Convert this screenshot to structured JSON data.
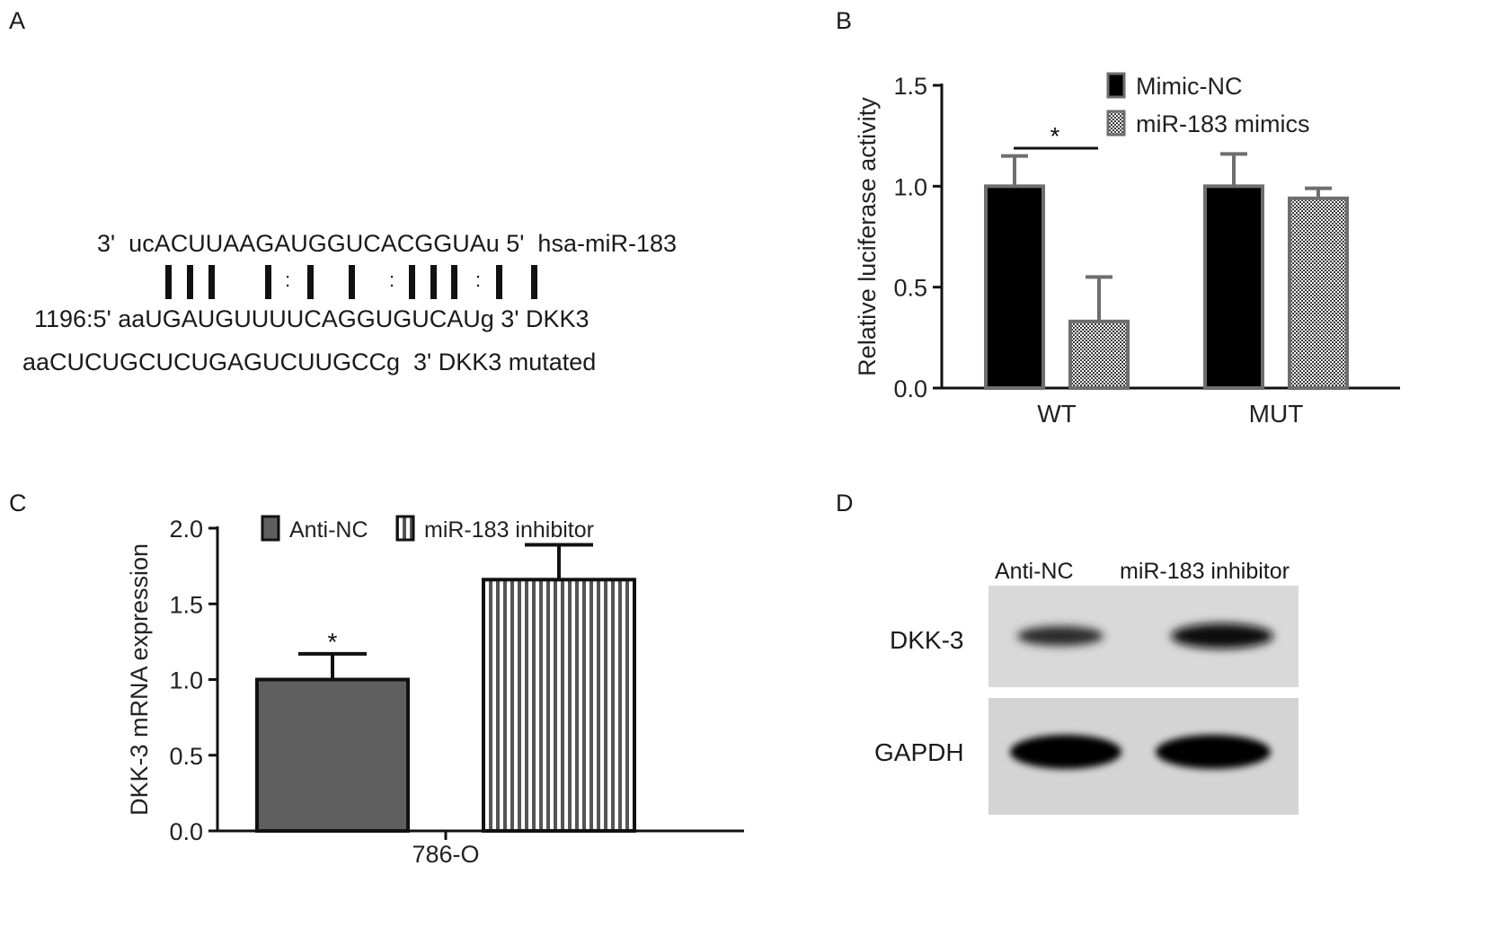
{
  "panels": {
    "a": {
      "letter": "A",
      "mirna_line": "3'  ucACUUAAGAUGGUCACGGUAu 5'  hsa-miR-183",
      "dkk3_line": "1196:5' aaUGAUGUUUUCAGGUGUCAUg 3' DKK3",
      "mutated_line": "aaCUCUGCUCUGAGUCUUGCCg  3' DKK3 mutated",
      "pairing": [
        "|",
        "|",
        "|",
        "|",
        ":",
        "|",
        "|",
        ":",
        "|",
        "|",
        "|",
        ":",
        "|",
        "|"
      ]
    },
    "b": {
      "letter": "B"
    },
    "c": {
      "letter": "C"
    },
    "d": {
      "letter": "D",
      "lane_labels": [
        "Anti-NC",
        "miR-183 inhibitor"
      ],
      "row_labels": [
        "DKK-3",
        "GAPDH"
      ]
    }
  },
  "colors": {
    "black_bar": "#000000",
    "grey_bar": "#5f5f5f",
    "bar_outline": "#6e6e6e",
    "blot_bg": "#dcdcdc"
  },
  "chart_data": [
    {
      "id": "B",
      "type": "bar",
      "ylabel": "Relative luciferase activity",
      "xlabel": "",
      "categories": [
        "WT",
        "MUT"
      ],
      "yticks": [
        "0.0",
        "0.5",
        "1.0",
        "1.5"
      ],
      "ylim": [
        0,
        1.5
      ],
      "series": [
        {
          "name": "Mimic-NC",
          "values": [
            1.0,
            1.0
          ],
          "errors": [
            0.15,
            0.16
          ],
          "pattern": "solid-black"
        },
        {
          "name": "miR-183 mimics",
          "values": [
            0.33,
            0.94
          ],
          "errors": [
            0.22,
            0.05
          ],
          "pattern": "checker"
        }
      ],
      "annotations": [
        {
          "text": "*",
          "category": "WT",
          "spans": "both"
        }
      ],
      "legend": "top-right"
    },
    {
      "id": "C",
      "type": "bar",
      "ylabel": "DKK-3 mRNA expression",
      "xlabel": "",
      "categories": [
        "786-O"
      ],
      "yticks": [
        "0.0",
        "0.5",
        "1.0",
        "1.5",
        "2.0"
      ],
      "ylim": [
        0,
        2.0
      ],
      "series": [
        {
          "name": "Anti-NC",
          "values": [
            1.0
          ],
          "errors": [
            0.17
          ],
          "pattern": "solid-grey"
        },
        {
          "name": "miR-183 inhibitor",
          "values": [
            1.66
          ],
          "errors": [
            0.23
          ],
          "pattern": "vstripes"
        }
      ],
      "annotations": [
        {
          "text": "*",
          "series": "Anti-NC"
        }
      ],
      "legend": "top"
    }
  ]
}
